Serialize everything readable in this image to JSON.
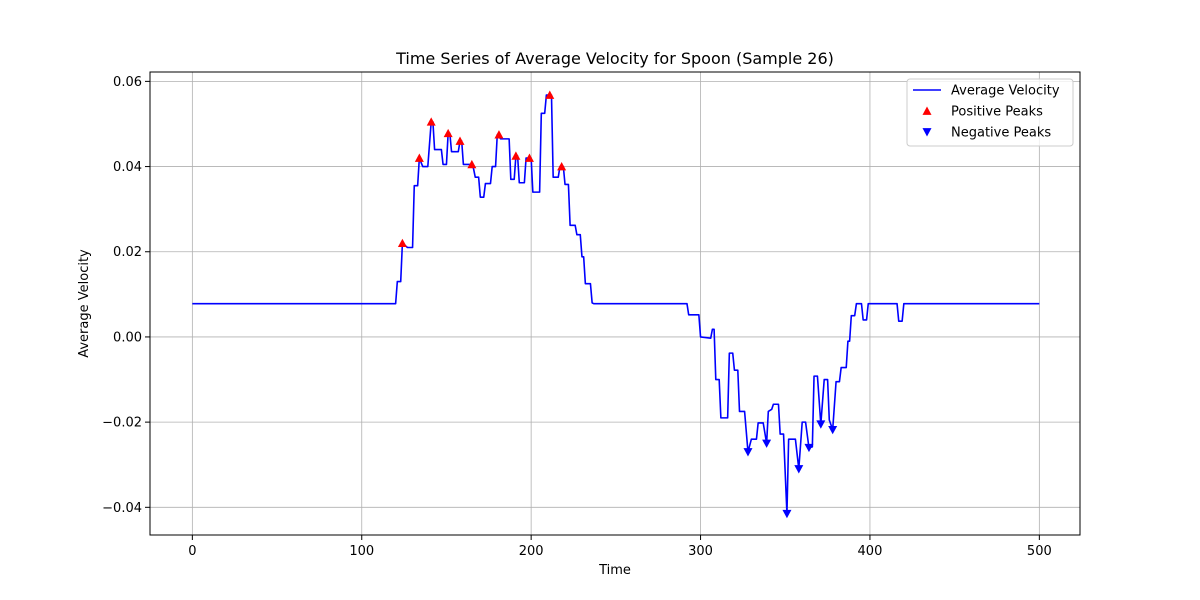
{
  "chart_data": {
    "type": "line",
    "title": "Time Series of Average Velocity for Spoon (Sample 26)",
    "xlabel": "Time",
    "ylabel": "Average Velocity",
    "xlim": [
      -25,
      524
    ],
    "ylim": [
      -0.0465,
      0.0622
    ],
    "xticks": [
      0,
      100,
      200,
      300,
      400,
      500
    ],
    "xtick_labels": [
      "0",
      "100",
      "200",
      "300",
      "400",
      "500"
    ],
    "yticks": [
      -0.04,
      -0.02,
      0.0,
      0.02,
      0.04,
      0.06
    ],
    "ytick_labels": [
      "−0.04",
      "−0.02",
      "0.00",
      "0.02",
      "0.04",
      "0.06"
    ],
    "grid": true,
    "legend_position": "top-right",
    "series": [
      {
        "name": "Average Velocity",
        "kind": "line",
        "color": "#0000ff",
        "points": [
          [
            0,
            0.0078
          ],
          [
            119,
            0.0078
          ],
          [
            120,
            0.0078
          ],
          [
            121,
            0.013
          ],
          [
            123,
            0.013
          ],
          [
            124,
            0.022
          ],
          [
            127,
            0.021
          ],
          [
            130,
            0.021
          ],
          [
            131,
            0.0355
          ],
          [
            133,
            0.0355
          ],
          [
            134,
            0.042
          ],
          [
            136,
            0.04
          ],
          [
            139,
            0.04
          ],
          [
            141,
            0.0505
          ],
          [
            142,
            0.0505
          ],
          [
            143,
            0.044
          ],
          [
            147,
            0.044
          ],
          [
            148,
            0.0405
          ],
          [
            150,
            0.0405
          ],
          [
            151,
            0.0478
          ],
          [
            152,
            0.0478
          ],
          [
            153,
            0.0435
          ],
          [
            157,
            0.0435
          ],
          [
            158,
            0.046
          ],
          [
            159,
            0.046
          ],
          [
            160,
            0.0405
          ],
          [
            164,
            0.0405
          ],
          [
            165,
            0.0405
          ],
          [
            166,
            0.0395
          ],
          [
            167,
            0.0375
          ],
          [
            169,
            0.0375
          ],
          [
            170,
            0.0328
          ],
          [
            172,
            0.0328
          ],
          [
            173,
            0.036
          ],
          [
            176,
            0.036
          ],
          [
            177,
            0.04
          ],
          [
            179,
            0.04
          ],
          [
            180,
            0.0475
          ],
          [
            182,
            0.0465
          ],
          [
            187,
            0.0465
          ],
          [
            188,
            0.037
          ],
          [
            190,
            0.037
          ],
          [
            191,
            0.0425
          ],
          [
            192,
            0.0425
          ],
          [
            193,
            0.0362
          ],
          [
            196,
            0.0362
          ],
          [
            197,
            0.042
          ],
          [
            200,
            0.042
          ],
          [
            201,
            0.034
          ],
          [
            205,
            0.034
          ],
          [
            206,
            0.0525
          ],
          [
            208,
            0.0525
          ],
          [
            209,
            0.0568
          ],
          [
            212,
            0.0568
          ],
          [
            213,
            0.0375
          ],
          [
            216,
            0.0375
          ],
          [
            217,
            0.04
          ],
          [
            219,
            0.04
          ],
          [
            220,
            0.0358
          ],
          [
            222,
            0.0358
          ],
          [
            223,
            0.0262
          ],
          [
            226,
            0.0262
          ],
          [
            227,
            0.024
          ],
          [
            229,
            0.024
          ],
          [
            230,
            0.0188
          ],
          [
            231,
            0.0188
          ],
          [
            232,
            0.0125
          ],
          [
            235,
            0.0125
          ],
          [
            236,
            0.008
          ],
          [
            237,
            0.0078
          ],
          [
            292,
            0.0078
          ],
          [
            293,
            0.0052
          ],
          [
            299,
            0.0052
          ],
          [
            300,
            0.0
          ],
          [
            306,
            -0.0003
          ],
          [
            307,
            0.0018
          ],
          [
            308,
            0.0018
          ],
          [
            309,
            -0.01
          ],
          [
            311,
            -0.01
          ],
          [
            312,
            -0.019
          ],
          [
            316,
            -0.019
          ],
          [
            317,
            -0.0038
          ],
          [
            319,
            -0.0038
          ],
          [
            320,
            -0.0078
          ],
          [
            322,
            -0.0078
          ],
          [
            323,
            -0.0175
          ],
          [
            326,
            -0.0175
          ],
          [
            328,
            -0.027
          ],
          [
            330,
            -0.024
          ],
          [
            333,
            -0.024
          ],
          [
            334,
            -0.0202
          ],
          [
            337,
            -0.0202
          ],
          [
            339,
            -0.025
          ],
          [
            340,
            -0.0175
          ],
          [
            342,
            -0.017
          ],
          [
            343,
            -0.0158
          ],
          [
            346,
            -0.0158
          ],
          [
            347,
            -0.0228
          ],
          [
            349,
            -0.0228
          ],
          [
            351,
            -0.0415
          ],
          [
            352,
            -0.024
          ],
          [
            356,
            -0.024
          ],
          [
            358,
            -0.031
          ],
          [
            360,
            -0.02
          ],
          [
            362,
            -0.02
          ],
          [
            364,
            -0.026
          ],
          [
            366,
            -0.0258
          ],
          [
            367,
            -0.0092
          ],
          [
            369,
            -0.0092
          ],
          [
            371,
            -0.0205
          ],
          [
            373,
            -0.01
          ],
          [
            375,
            -0.01
          ],
          [
            376,
            -0.0195
          ],
          [
            378,
            -0.0218
          ],
          [
            380,
            -0.0105
          ],
          [
            382,
            -0.0105
          ],
          [
            383,
            -0.0072
          ],
          [
            386,
            -0.0072
          ],
          [
            387,
            -0.001
          ],
          [
            388,
            -0.001
          ],
          [
            389,
            0.005
          ],
          [
            391,
            0.005
          ],
          [
            392,
            0.0078
          ],
          [
            395,
            0.0078
          ],
          [
            396,
            0.004
          ],
          [
            398,
            0.004
          ],
          [
            399,
            0.0078
          ],
          [
            416,
            0.0078
          ],
          [
            417,
            0.0037
          ],
          [
            419,
            0.0037
          ],
          [
            420,
            0.0078
          ],
          [
            500,
            0.0078
          ]
        ]
      },
      {
        "name": "Positive Peaks",
        "kind": "marker",
        "marker": "triangle-up",
        "color": "#ff0000",
        "points": [
          [
            124,
            0.022
          ],
          [
            134,
            0.042
          ],
          [
            141,
            0.0505
          ],
          [
            151,
            0.0478
          ],
          [
            158,
            0.046
          ],
          [
            165,
            0.0405
          ],
          [
            181,
            0.0475
          ],
          [
            191,
            0.0425
          ],
          [
            199,
            0.042
          ],
          [
            211,
            0.0568
          ],
          [
            218,
            0.04
          ]
        ]
      },
      {
        "name": "Negative Peaks",
        "kind": "marker",
        "marker": "triangle-down",
        "color": "#0000ff",
        "points": [
          [
            328,
            -0.027
          ],
          [
            339,
            -0.025
          ],
          [
            351,
            -0.0415
          ],
          [
            358,
            -0.031
          ],
          [
            364,
            -0.026
          ],
          [
            371,
            -0.0205
          ],
          [
            378,
            -0.0218
          ]
        ]
      }
    ]
  }
}
